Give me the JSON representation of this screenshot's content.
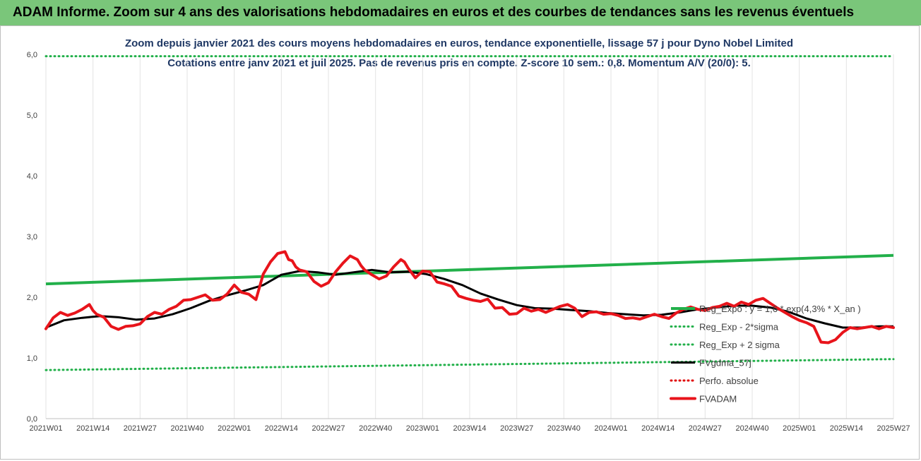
{
  "banner": {
    "text": "ADAM Informe. Zoom sur 4 ans des valorisations hebdomadaires en euros et des courbes de tendances sans les revenus éventuels"
  },
  "chart_data": {
    "type": "line",
    "title": "Zoom depuis janvier 2021 des cours moyens hebdomadaires en euros, tendance exponentielle, lissage 57 j pour Dyno Nobel Limited",
    "subtitle": "Cotations entre janv 2021 et juil 2025. Pas de revenus pris en compte. Z-score 10 sem.: 0,8. Momentum A/V (20/0): 5.",
    "xlabel": "",
    "ylabel": "",
    "ylim": [
      0,
      6
    ],
    "yticks": [
      "0,0",
      "1,0",
      "2,0",
      "3,0",
      "4,0",
      "5,0",
      "6,0"
    ],
    "grid": "vertical",
    "legend_position": "right",
    "x_tick_labels": [
      "2021W01",
      "2021W14",
      "2021W27",
      "2021W40",
      "2022W01",
      "2022W14",
      "2022W27",
      "2022W40",
      "2023W01",
      "2023W14",
      "2023W27",
      "2023W40",
      "2024W01",
      "2024W14",
      "2024W27",
      "2024W40",
      "2025W01",
      "2025W14",
      "2025W27"
    ],
    "x_tick_weeks": [
      0,
      13,
      26,
      39,
      52,
      65,
      78,
      91,
      104,
      117,
      130,
      143,
      156,
      169,
      182,
      195,
      208,
      221,
      234
    ],
    "x_range": [
      0,
      234
    ],
    "series": [
      {
        "name": "Reg_Expo : y = 1,6 * exp(4,3% * X_an )",
        "color": "#22b04a",
        "style": "solid",
        "x": [
          0,
          234
        ],
        "y": [
          2.22,
          2.69
        ]
      },
      {
        "name": "Reg_Exp - 2*sigma",
        "color": "#22b04a",
        "style": "dotted",
        "x": [
          0,
          234
        ],
        "y": [
          0.8,
          0.98
        ]
      },
      {
        "name": "Reg_Exp + 2 sigma",
        "color": "#22b04a",
        "style": "dotted",
        "x": [
          0,
          234
        ],
        "y": [
          5.97,
          5.97
        ]
      },
      {
        "name": "FVgdma_57j",
        "color": "#000000",
        "style": "solid",
        "x": [
          0,
          5,
          10,
          15,
          20,
          25,
          30,
          35,
          40,
          45,
          50,
          55,
          60,
          65,
          70,
          75,
          80,
          85,
          90,
          95,
          100,
          105,
          110,
          115,
          120,
          125,
          130,
          135,
          140,
          145,
          150,
          155,
          160,
          165,
          170,
          175,
          180,
          185,
          190,
          195,
          200,
          205,
          210,
          215,
          220,
          225,
          230,
          234
        ],
        "y": [
          1.5,
          1.62,
          1.66,
          1.69,
          1.67,
          1.63,
          1.65,
          1.72,
          1.82,
          1.94,
          2.03,
          2.11,
          2.2,
          2.37,
          2.43,
          2.41,
          2.37,
          2.41,
          2.45,
          2.41,
          2.42,
          2.38,
          2.3,
          2.2,
          2.06,
          1.96,
          1.87,
          1.82,
          1.81,
          1.79,
          1.77,
          1.74,
          1.72,
          1.7,
          1.71,
          1.75,
          1.8,
          1.83,
          1.86,
          1.86,
          1.83,
          1.76,
          1.65,
          1.57,
          1.5,
          1.5,
          1.52,
          1.52
        ]
      },
      {
        "name": "Perfo. absolue",
        "color": "#e00000",
        "style": "dotted",
        "x": [],
        "y": []
      },
      {
        "name": "FVADAM",
        "color": "#e8141b",
        "style": "solid-thick",
        "x": [
          0,
          2,
          4,
          6,
          8,
          10,
          12,
          13,
          14,
          16,
          18,
          20,
          22,
          24,
          26,
          28,
          30,
          32,
          34,
          36,
          38,
          40,
          42,
          44,
          46,
          48,
          50,
          52,
          54,
          56,
          58,
          60,
          62,
          64,
          66,
          67,
          68,
          69,
          70,
          72,
          74,
          76,
          78,
          80,
          82,
          84,
          86,
          87,
          88,
          90,
          92,
          94,
          96,
          98,
          99,
          100,
          102,
          104,
          106,
          108,
          110,
          112,
          114,
          116,
          118,
          120,
          122,
          124,
          126,
          128,
          130,
          132,
          134,
          136,
          138,
          140,
          142,
          144,
          146,
          148,
          150,
          152,
          154,
          156,
          158,
          160,
          162,
          164,
          166,
          168,
          170,
          172,
          174,
          176,
          178,
          180,
          182,
          184,
          186,
          188,
          190,
          192,
          194,
          196,
          198,
          200,
          202,
          204,
          206,
          208,
          210,
          212,
          214,
          216,
          218,
          220,
          222,
          224,
          226,
          228,
          230,
          232,
          234
        ],
        "y": [
          1.48,
          1.66,
          1.75,
          1.7,
          1.74,
          1.8,
          1.88,
          1.78,
          1.72,
          1.67,
          1.52,
          1.47,
          1.52,
          1.53,
          1.56,
          1.68,
          1.75,
          1.72,
          1.8,
          1.85,
          1.95,
          1.96,
          2.0,
          2.04,
          1.95,
          1.96,
          2.05,
          2.2,
          2.08,
          2.05,
          1.96,
          2.38,
          2.58,
          2.72,
          2.75,
          2.62,
          2.6,
          2.5,
          2.45,
          2.42,
          2.26,
          2.18,
          2.24,
          2.42,
          2.56,
          2.68,
          2.62,
          2.52,
          2.45,
          2.37,
          2.3,
          2.35,
          2.5,
          2.62,
          2.58,
          2.48,
          2.32,
          2.43,
          2.42,
          2.25,
          2.22,
          2.18,
          2.02,
          1.98,
          1.95,
          1.93,
          1.97,
          1.82,
          1.83,
          1.72,
          1.73,
          1.82,
          1.77,
          1.8,
          1.75,
          1.8,
          1.85,
          1.88,
          1.82,
          1.68,
          1.75,
          1.76,
          1.72,
          1.73,
          1.7,
          1.65,
          1.66,
          1.64,
          1.68,
          1.72,
          1.68,
          1.65,
          1.74,
          1.8,
          1.84,
          1.8,
          1.78,
          1.83,
          1.85,
          1.9,
          1.85,
          1.92,
          1.88,
          1.95,
          1.98,
          1.9,
          1.82,
          1.75,
          1.68,
          1.62,
          1.58,
          1.52,
          1.26,
          1.25,
          1.3,
          1.42,
          1.5,
          1.48,
          1.5,
          1.52,
          1.48,
          1.52,
          1.5
        ]
      }
    ],
    "colors": {
      "trend": "#22b04a",
      "smoothed": "#000000",
      "price": "#e8141b",
      "banner": "#7ac67a",
      "title": "#1f3864"
    }
  }
}
